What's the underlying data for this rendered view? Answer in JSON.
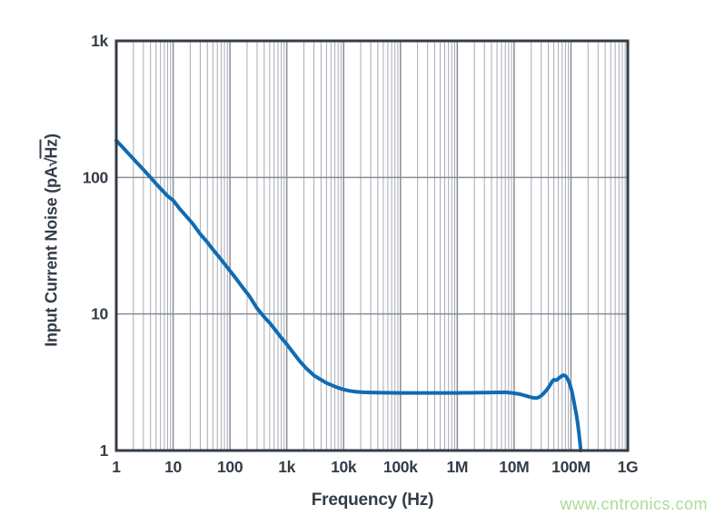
{
  "watermark": {
    "text": "www.cntronics.com",
    "color": "#abdc96"
  },
  "chart_data": {
    "type": "line",
    "title": "",
    "xlabel": "Frequency (Hz)",
    "ylabel": "Input Current Noise (pA√Hz)",
    "ylabel_parts": {
      "prefix": "Input Current Noise (pA",
      "sqrt": "√",
      "radicand": "Hz",
      "suffix": ")"
    },
    "x_scale": "log",
    "y_scale": "log",
    "xlim": [
      1,
      1000000000
    ],
    "ylim": [
      1,
      1000
    ],
    "grid": {
      "x_minor": true,
      "x_major": true,
      "y_major": true,
      "y_minor": false
    },
    "legend": "none",
    "x_ticks": [
      {
        "value": 1,
        "label": "1"
      },
      {
        "value": 10,
        "label": "10"
      },
      {
        "value": 100,
        "label": "100"
      },
      {
        "value": 1000,
        "label": "1k"
      },
      {
        "value": 10000,
        "label": "10k"
      },
      {
        "value": 100000,
        "label": "100k"
      },
      {
        "value": 1000000,
        "label": "1M"
      },
      {
        "value": 10000000,
        "label": "10M"
      },
      {
        "value": 100000000,
        "label": "100M"
      },
      {
        "value": 1000000000,
        "label": "1G"
      }
    ],
    "y_ticks": [
      {
        "value": 1000,
        "label": "1k"
      },
      {
        "value": 100,
        "label": "100"
      },
      {
        "value": 10,
        "label": "10"
      },
      {
        "value": 1,
        "label": "1"
      }
    ],
    "colors": {
      "curve": "#0f6bb4",
      "frame": "#343c46",
      "text": "#343c46",
      "grid_minor": "#a7abb3",
      "grid_major": "#878d96"
    },
    "series": [
      {
        "name": "input-current-noise",
        "color": "#0f6bb4",
        "points": [
          [
            1,
            186
          ],
          [
            1.3,
            166
          ],
          [
            1.7,
            147
          ],
          [
            2.2,
            131
          ],
          [
            3,
            114
          ],
          [
            4,
            100
          ],
          [
            5,
            90
          ],
          [
            6.5,
            80
          ],
          [
            8,
            73
          ],
          [
            10,
            68
          ],
          [
            13,
            59
          ],
          [
            17,
            52
          ],
          [
            22,
            46
          ],
          [
            30,
            38.5
          ],
          [
            40,
            33.5
          ],
          [
            50,
            29.7
          ],
          [
            65,
            26
          ],
          [
            80,
            23.3
          ],
          [
            100,
            20.7
          ],
          [
            130,
            18
          ],
          [
            170,
            15.5
          ],
          [
            220,
            13.5
          ],
          [
            300,
            11.0
          ],
          [
            400,
            9.5
          ],
          [
            500,
            8.6
          ],
          [
            650,
            7.5
          ],
          [
            800,
            6.7
          ],
          [
            1000,
            6.0
          ],
          [
            1300,
            5.2
          ],
          [
            1700,
            4.5
          ],
          [
            2200,
            4.0
          ],
          [
            3000,
            3.55
          ],
          [
            4000,
            3.3
          ],
          [
            5000,
            3.12
          ],
          [
            6500,
            2.98
          ],
          [
            8000,
            2.88
          ],
          [
            10000,
            2.8
          ],
          [
            13000,
            2.73
          ],
          [
            17000,
            2.69
          ],
          [
            22000,
            2.67
          ],
          [
            30000,
            2.66
          ],
          [
            50000,
            2.65
          ],
          [
            100000,
            2.64
          ],
          [
            200000,
            2.64
          ],
          [
            500000,
            2.64
          ],
          [
            1000000,
            2.64
          ],
          [
            2000000,
            2.65
          ],
          [
            4000000,
            2.66
          ],
          [
            7000000,
            2.67
          ],
          [
            10000000,
            2.63
          ],
          [
            13000000,
            2.58
          ],
          [
            17000000,
            2.5
          ],
          [
            21000000,
            2.44
          ],
          [
            25000000,
            2.42
          ],
          [
            29000000,
            2.49
          ],
          [
            33000000,
            2.62
          ],
          [
            38000000,
            2.8
          ],
          [
            43000000,
            3.02
          ],
          [
            47000000,
            3.22
          ],
          [
            50000000,
            3.3
          ],
          [
            53000000,
            3.27
          ],
          [
            57000000,
            3.3
          ],
          [
            62000000,
            3.4
          ],
          [
            68000000,
            3.5
          ],
          [
            73000000,
            3.56
          ],
          [
            79000000,
            3.53
          ],
          [
            85000000,
            3.42
          ],
          [
            91000000,
            3.22
          ],
          [
            97000000,
            3.0
          ],
          [
            104000000,
            2.7
          ],
          [
            110000000,
            2.42
          ],
          [
            117000000,
            2.1
          ],
          [
            124000000,
            1.85
          ],
          [
            131000000,
            1.6
          ],
          [
            138000000,
            1.35
          ],
          [
            144000000,
            1.15
          ],
          [
            149000000,
            1.0
          ]
        ]
      }
    ]
  }
}
